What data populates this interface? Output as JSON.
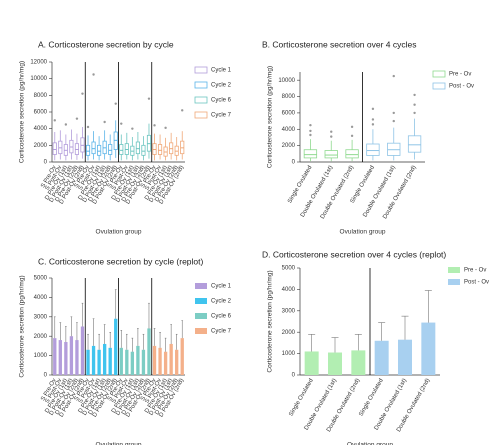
{
  "chart_data": [
    {
      "type": "boxplot",
      "title": "A. Corticosterone secretion by cycle",
      "ylabel": "Corticosterone secretion (pg/hr/mg)",
      "xlabel": "Ovulation group",
      "legend": "right",
      "categories": [
        "S Pre-Ov",
        "S Post-Ov",
        "D Pre-Ov (1st)",
        "D Post-Ov (1st)",
        "D Pre-Ov (2nd)",
        "D Post-Ov (2nd)"
      ],
      "ylim": [
        0,
        12000
      ],
      "yticks": [
        0,
        2000,
        4000,
        6000,
        8000,
        10000,
        12000
      ],
      "series": [
        {
          "name": "Cycle 1",
          "color": "#b39ddb",
          "boxes": [
            {
              "min": 200,
              "q1": 900,
              "median": 1500,
              "q3": 2300,
              "max": 3600,
              "outliers": [
                5000
              ]
            },
            {
              "min": 300,
              "q1": 1000,
              "median": 1700,
              "q3": 2500,
              "max": 3800,
              "outliers": []
            },
            {
              "min": 200,
              "q1": 800,
              "median": 1400,
              "q3": 2100,
              "max": 3300,
              "outliers": [
                4500
              ]
            },
            {
              "min": 300,
              "q1": 1100,
              "median": 1800,
              "q3": 2600,
              "max": 3900,
              "outliers": []
            },
            {
              "min": 250,
              "q1": 900,
              "median": 1500,
              "q3": 2200,
              "max": 3400,
              "outliers": [
                5200
              ]
            },
            {
              "min": 400,
              "q1": 1200,
              "median": 2000,
              "q3": 2900,
              "max": 4200,
              "outliers": [
                8200
              ]
            }
          ]
        },
        {
          "name": "Cycle 2",
          "color": "#5ab4e8",
          "boxes": [
            {
              "min": 200,
              "q1": 800,
              "median": 1300,
              "q3": 2000,
              "max": 3200,
              "outliers": [
                4200
              ]
            },
            {
              "min": 300,
              "q1": 1000,
              "median": 1600,
              "q3": 2400,
              "max": 3700,
              "outliers": [
                10500
              ]
            },
            {
              "min": 200,
              "q1": 800,
              "median": 1300,
              "q3": 2000,
              "max": 3100,
              "outliers": []
            },
            {
              "min": 300,
              "q1": 1000,
              "median": 1700,
              "q3": 2500,
              "max": 3800,
              "outliers": [
                4800
              ]
            },
            {
              "min": 200,
              "q1": 900,
              "median": 1400,
              "q3": 2100,
              "max": 3300,
              "outliers": []
            },
            {
              "min": 500,
              "q1": 1500,
              "median": 2600,
              "q3": 3600,
              "max": 5000,
              "outliers": [
                7000
              ]
            }
          ]
        },
        {
          "name": "Cycle 6",
          "color": "#6cc5c0",
          "boxes": [
            {
              "min": 200,
              "q1": 900,
              "median": 1400,
              "q3": 2100,
              "max": 3300,
              "outliers": [
                4600
              ]
            },
            {
              "min": 300,
              "q1": 900,
              "median": 1500,
              "q3": 2200,
              "max": 3500,
              "outliers": []
            },
            {
              "min": 200,
              "q1": 800,
              "median": 1300,
              "q3": 1900,
              "max": 3000,
              "outliers": [
                4000
              ]
            },
            {
              "min": 300,
              "q1": 1000,
              "median": 1600,
              "q3": 2400,
              "max": 3600,
              "outliers": []
            },
            {
              "min": 200,
              "q1": 800,
              "median": 1300,
              "q3": 2000,
              "max": 3100,
              "outliers": []
            },
            {
              "min": 400,
              "q1": 1300,
              "median": 2200,
              "q3": 3200,
              "max": 4600,
              "outliers": [
                7600
              ]
            }
          ]
        },
        {
          "name": "Cycle 7",
          "color": "#f0a878",
          "boxes": [
            {
              "min": 200,
              "q1": 900,
              "median": 1500,
              "q3": 2200,
              "max": 3400,
              "outliers": [
                4400
              ]
            },
            {
              "min": 300,
              "q1": 900,
              "median": 1400,
              "q3": 2100,
              "max": 3300,
              "outliers": []
            },
            {
              "min": 200,
              "q1": 700,
              "median": 1200,
              "q3": 1800,
              "max": 2900,
              "outliers": [
                4100
              ]
            },
            {
              "min": 300,
              "q1": 1000,
              "median": 1600,
              "q3": 2300,
              "max": 3500,
              "outliers": []
            },
            {
              "min": 200,
              "q1": 800,
              "median": 1300,
              "q3": 1900,
              "max": 3000,
              "outliers": []
            },
            {
              "min": 300,
              "q1": 1000,
              "median": 1700,
              "q3": 2500,
              "max": 3700,
              "outliers": [
                6200
              ]
            }
          ]
        }
      ]
    },
    {
      "type": "boxplot",
      "title": "B. Corticosterone secretion over 4 cycles",
      "ylabel": "Corticosterone secretion (pg/hr/mg)",
      "xlabel": "Ovulation group",
      "legend": "upper right",
      "categories": [
        "Single Ovulated",
        "Double Ovulated (1st)",
        "Double Ovulated (2nd)"
      ],
      "ylim": [
        0,
        11000
      ],
      "yticks": [
        0,
        2000,
        4000,
        6000,
        8000,
        10000
      ],
      "series": [
        {
          "name": "Pre - Ov",
          "color": "#8fd98f",
          "boxes": [
            {
              "min": 100,
              "q1": 500,
              "median": 900,
              "q3": 1500,
              "max": 2800,
              "outliers": [
                3300,
                3800,
                4500
              ]
            },
            {
              "min": 100,
              "q1": 500,
              "median": 850,
              "q3": 1400,
              "max": 2600,
              "outliers": [
                3100,
                3700
              ]
            },
            {
              "min": 100,
              "q1": 500,
              "median": 900,
              "q3": 1500,
              "max": 2700,
              "outliers": [
                3200,
                4300
              ]
            }
          ]
        },
        {
          "name": "Post - Ov",
          "color": "#8fc4e6",
          "boxes": [
            {
              "min": 200,
              "q1": 800,
              "median": 1400,
              "q3": 2200,
              "max": 4000,
              "outliers": [
                4600,
                5200,
                6500
              ]
            },
            {
              "min": 200,
              "q1": 800,
              "median": 1500,
              "q3": 2300,
              "max": 4200,
              "outliers": [
                5000,
                6000,
                10500
              ]
            },
            {
              "min": 300,
              "q1": 1200,
              "median": 2100,
              "q3": 3200,
              "max": 5300,
              "outliers": [
                6000,
                7000,
                8200
              ]
            }
          ]
        }
      ]
    },
    {
      "type": "bar",
      "title": "C. Corticosterone secretion by cycle (replot)",
      "ylabel": "Corticosterone secretion (pg/hr/mg)",
      "xlabel": "Ovulation group",
      "legend": "right",
      "categories": [
        "S Pre-Ov",
        "S Post-Ov",
        "D Pre-Ov (1st)",
        "D Post-Ov (1st)",
        "D Pre-Ov (2nd)",
        "D Post-Ov (2nd)"
      ],
      "ylim": [
        0,
        5000
      ],
      "yticks": [
        0,
        1000,
        2000,
        3000,
        4000,
        5000
      ],
      "series": [
        {
          "name": "Cycle 1",
          "color": "#b39ddb",
          "values": [
            1900,
            1800,
            1700,
            2000,
            1800,
            2500
          ],
          "errors": [
            1100,
            900,
            800,
            1000,
            900,
            1200
          ]
        },
        {
          "name": "Cycle 2",
          "color": "#40c4ee",
          "values": [
            1300,
            1500,
            1300,
            1600,
            1400,
            2900
          ],
          "errors": [
            800,
            1400,
            800,
            1000,
            800,
            1500
          ]
        },
        {
          "name": "Cycle 6",
          "color": "#7ccdc4",
          "values": [
            1400,
            1300,
            1200,
            1500,
            1300,
            2400
          ],
          "errors": [
            900,
            800,
            700,
            900,
            800,
            1300
          ]
        },
        {
          "name": "Cycle 7",
          "color": "#f4b08a",
          "values": [
            1500,
            1400,
            1200,
            1600,
            1300,
            1900
          ],
          "errors": [
            900,
            800,
            700,
            1000,
            800,
            900
          ]
        }
      ]
    },
    {
      "type": "bar",
      "title": "D. Corticosterone secretion over 4 cycles (replot)",
      "ylabel": "Corticosterone secretion (pg/hr/mg)",
      "xlabel": "Ovulation group",
      "legend": "upper right",
      "categories": [
        "Single Ovulated",
        "Double Ovulated (1st)",
        "Double Ovulated (2nd)"
      ],
      "ylim": [
        0,
        5000
      ],
      "yticks": [
        0,
        1000,
        2000,
        3000,
        4000,
        5000
      ],
      "series": [
        {
          "name": "Pre - Ov",
          "color": "#b2eeb2",
          "values": [
            1100,
            1050,
            1150
          ],
          "errors": [
            800,
            700,
            750
          ]
        },
        {
          "name": "Post - Ov",
          "color": "#a8d0f0",
          "values": [
            1600,
            1650,
            2450
          ],
          "errors": [
            850,
            1100,
            1500
          ]
        }
      ]
    }
  ]
}
